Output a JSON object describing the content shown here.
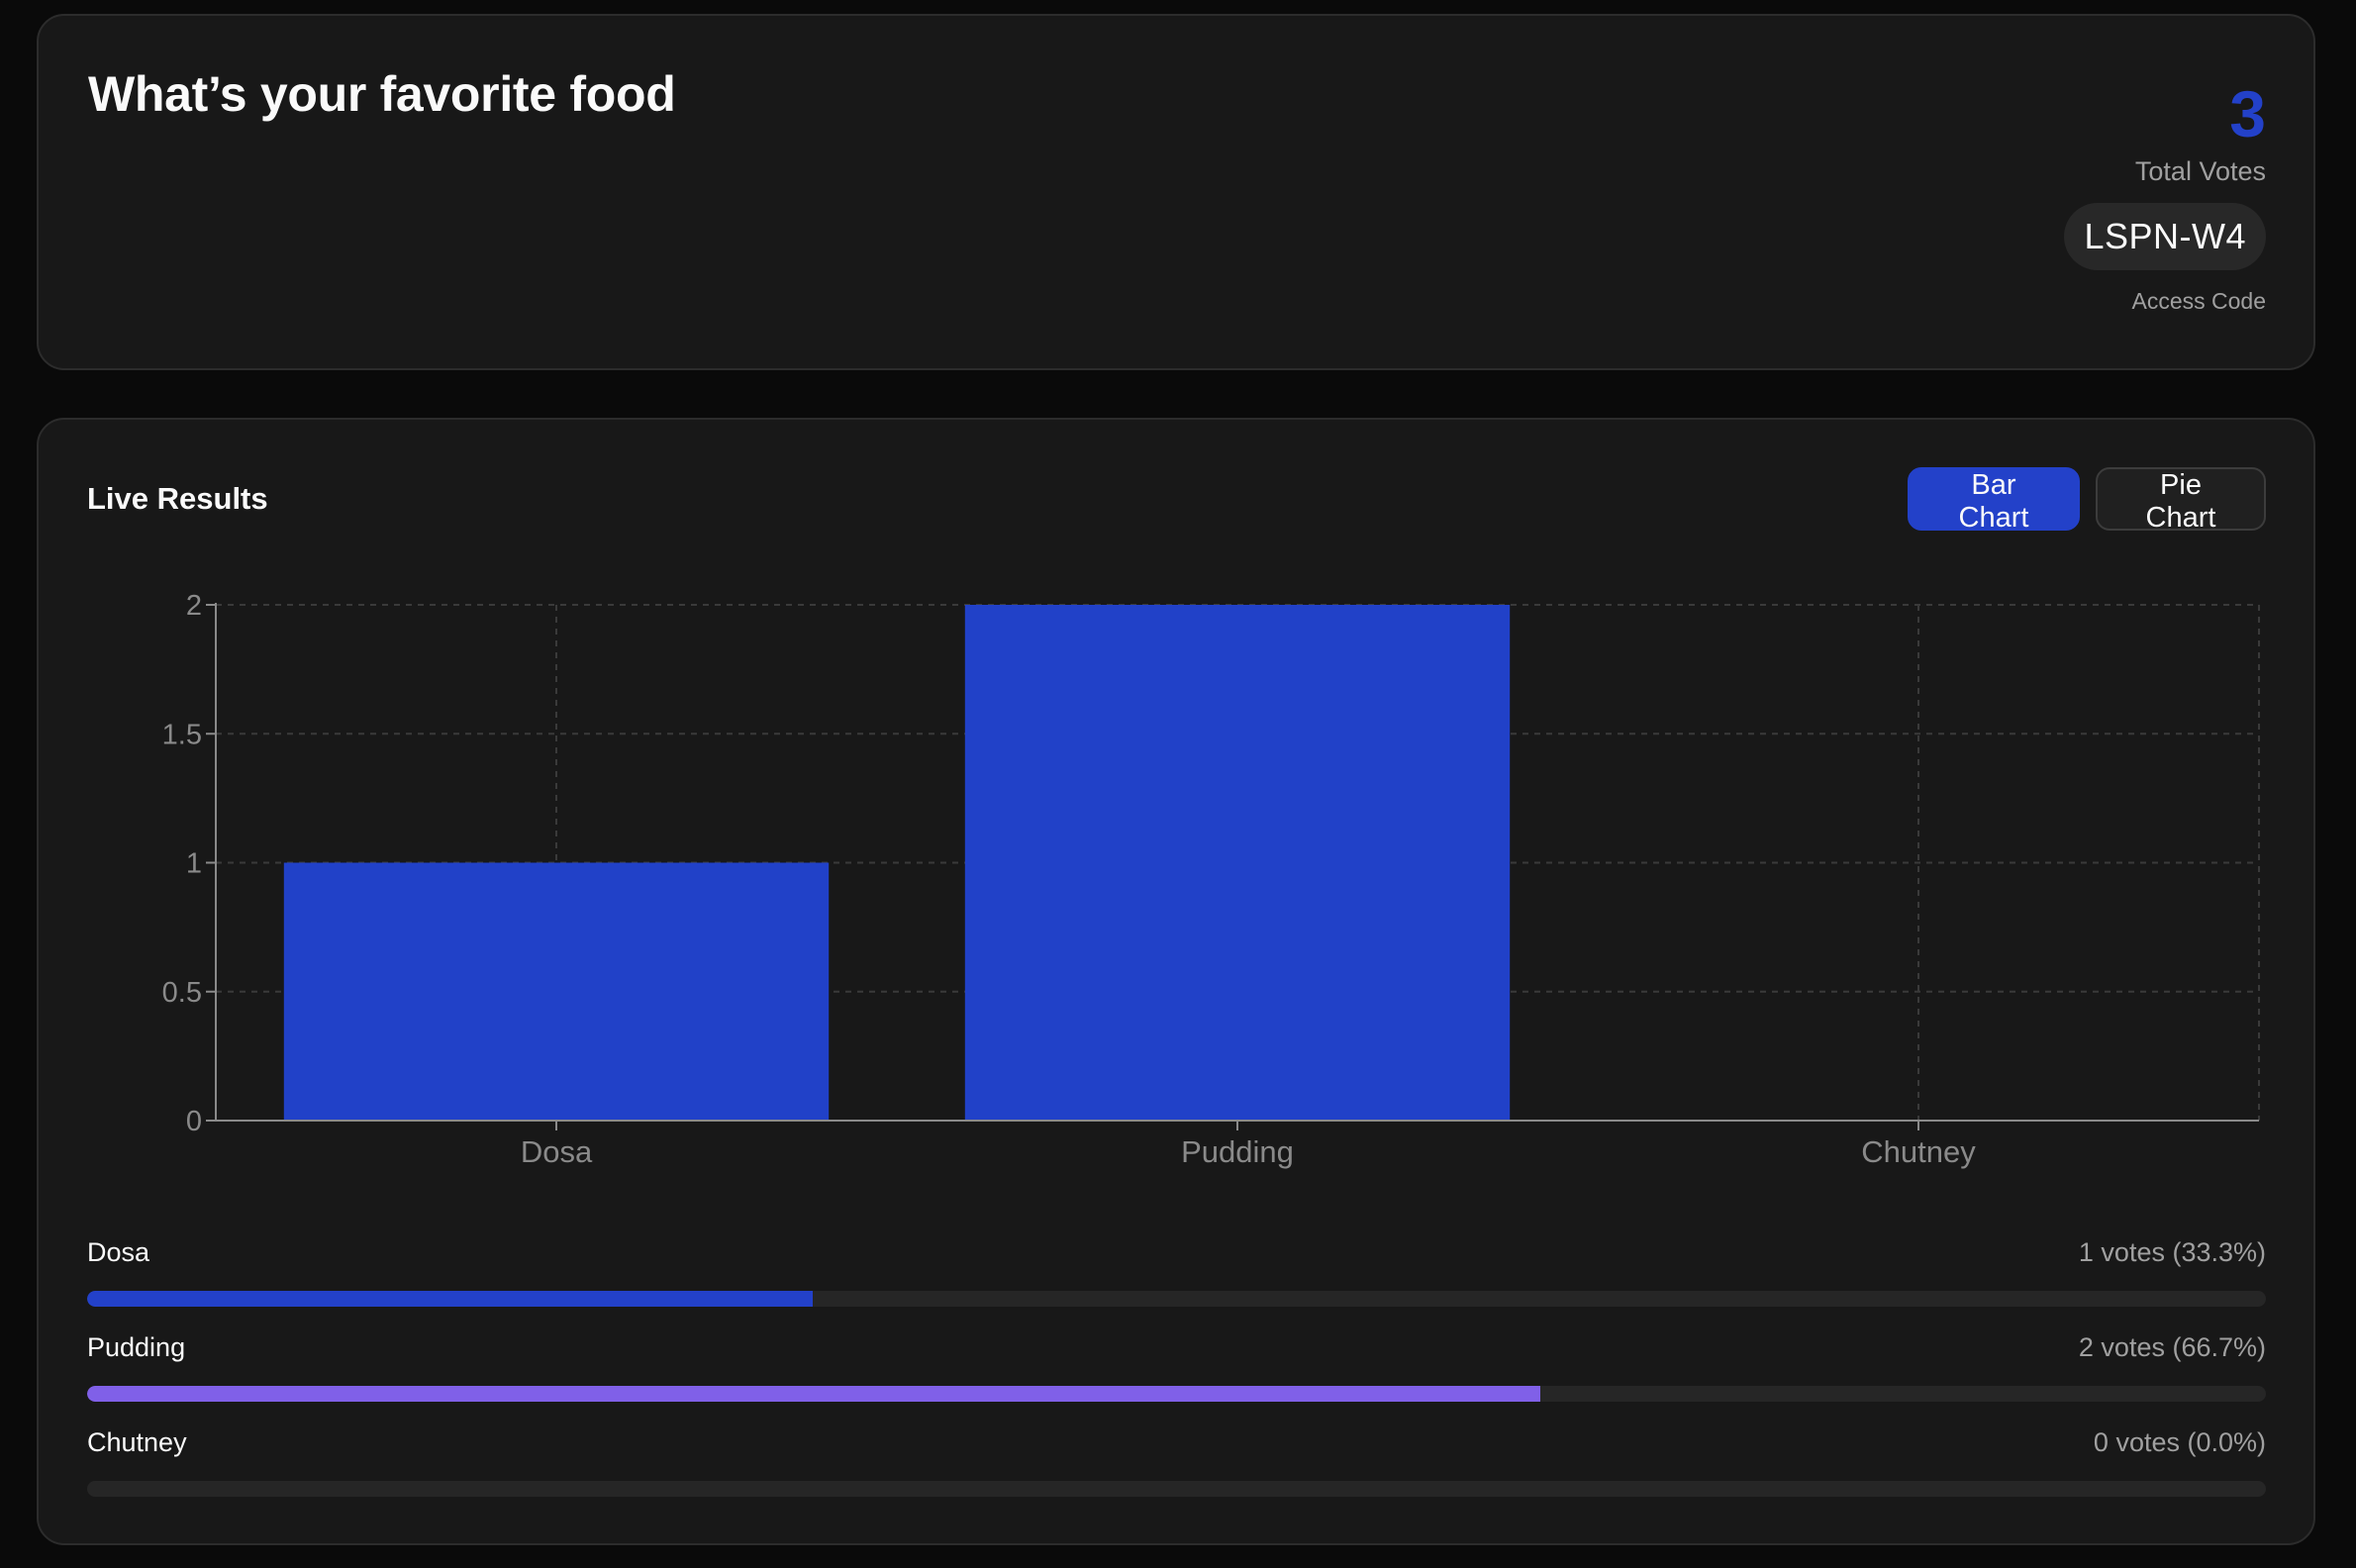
{
  "poll": {
    "title": "What’s your favorite food",
    "total_votes": "3",
    "total_votes_label": "Total Votes",
    "access_code": "LSPN-W4",
    "access_code_label": "Access Code"
  },
  "results": {
    "title": "Live Results",
    "toggle": {
      "bar_label": "Bar Chart",
      "pie_label": "Pie Chart",
      "active": "bar"
    },
    "options": [
      {
        "label": "Dosa",
        "votes_text": "1 votes (33.3%)",
        "votes": 1,
        "percent": 33.3,
        "color": "#2341c9"
      },
      {
        "label": "Pudding",
        "votes_text": "2 votes (66.7%)",
        "votes": 2,
        "percent": 66.7,
        "color": "#8060e8"
      },
      {
        "label": "Chutney",
        "votes_text": "0 votes (0.0%)",
        "votes": 0,
        "percent": 0.0,
        "color": "#2341c9"
      }
    ]
  },
  "colors": {
    "accent": "#2341c9",
    "bar": "#2141c8",
    "secondary": "#8060e8",
    "card_bg": "#181818",
    "page_bg": "#0a0a0a",
    "track": "#262626"
  },
  "chart_data": {
    "type": "bar",
    "title": "",
    "categories": [
      "Dosa",
      "Pudding",
      "Chutney"
    ],
    "values": [
      1,
      2,
      0
    ],
    "xlabel": "",
    "ylabel": "",
    "ylim": [
      0,
      2
    ],
    "yticks": [
      "0",
      "0.5",
      "1",
      "1.5",
      "2"
    ],
    "grid": true,
    "legend": null
  }
}
